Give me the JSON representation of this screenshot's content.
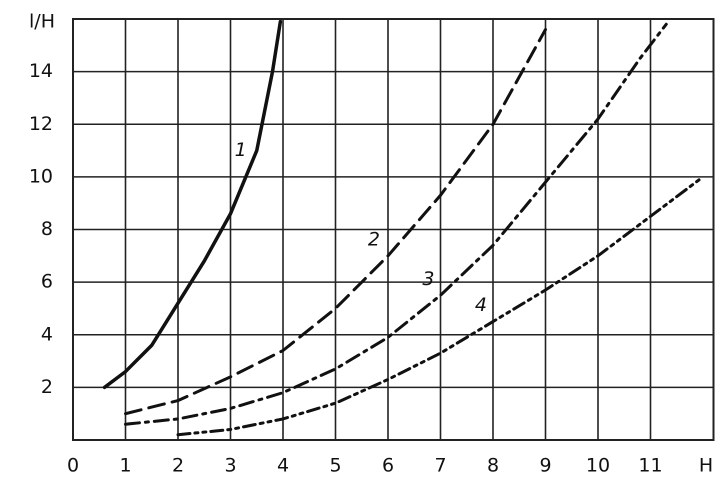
{
  "chart_data": {
    "type": "line",
    "y_label": "l/H",
    "x_label": "H",
    "xlim": [
      0,
      12.2
    ],
    "ylim": [
      0,
      16
    ],
    "xticks": [
      0,
      1,
      2,
      3,
      4,
      5,
      6,
      7,
      8,
      9,
      10,
      11
    ],
    "yticks": [
      2,
      4,
      6,
      8,
      10,
      12,
      14
    ],
    "grid": true,
    "series": [
      {
        "name": "1",
        "color": "#111111",
        "style": "solid",
        "x": [
          0.6,
          1,
          1.5,
          2,
          2.5,
          3,
          3.5,
          3.8,
          3.95
        ],
        "values": [
          2,
          2.6,
          3.6,
          5.2,
          6.8,
          8.6,
          11,
          14,
          15.9
        ]
      },
      {
        "name": "2",
        "color": "#111111",
        "style": "dashed",
        "x": [
          1,
          2,
          3,
          4,
          5,
          6,
          7,
          8,
          8.5,
          9
        ],
        "values": [
          1,
          1.5,
          2.4,
          3.4,
          5,
          7,
          9.3,
          12,
          13.8,
          15.6
        ]
      },
      {
        "name": "3",
        "color": "#111111",
        "style": "dashdot",
        "x": [
          1,
          2,
          3,
          4,
          5,
          6,
          7,
          8,
          9,
          10,
          10.8,
          11.3
        ],
        "values": [
          0.6,
          0.8,
          1.2,
          1.8,
          2.7,
          3.9,
          5.5,
          7.4,
          9.8,
          12.2,
          14.5,
          15.8
        ]
      },
      {
        "name": "4",
        "color": "#111111",
        "style": "dashdotdot",
        "x": [
          2,
          3,
          4,
          5,
          6,
          7,
          8,
          9,
          10,
          11,
          12
        ],
        "values": [
          0.2,
          0.4,
          0.8,
          1.4,
          2.3,
          3.3,
          4.5,
          5.7,
          7,
          8.5,
          10
        ]
      }
    ]
  }
}
